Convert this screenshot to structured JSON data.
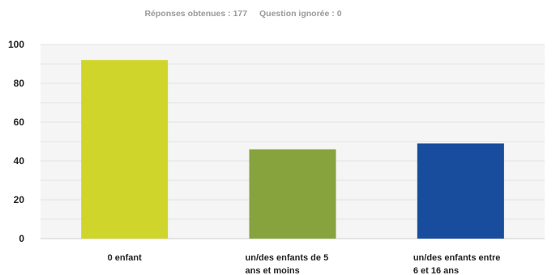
{
  "header": {
    "answered": "Réponses obtenues : 177",
    "skipped": "Question ignorée : 0"
  },
  "chart_data": {
    "type": "bar",
    "categories": [
      [
        "0 enfant"
      ],
      [
        "un/des enfants de 5",
        "ans et moins"
      ],
      [
        "un/des enfants entre",
        "6 et 16 ans"
      ]
    ],
    "values": [
      92,
      46,
      49
    ],
    "colors": [
      "#d0d52c",
      "#86a33d",
      "#174d9c"
    ],
    "ylim": [
      0,
      100
    ],
    "yticks": [
      0,
      20,
      40,
      60,
      80,
      100
    ],
    "grid": true,
    "plot_background": "#f5f5f5",
    "title": "",
    "xlabel": "",
    "ylabel": ""
  }
}
